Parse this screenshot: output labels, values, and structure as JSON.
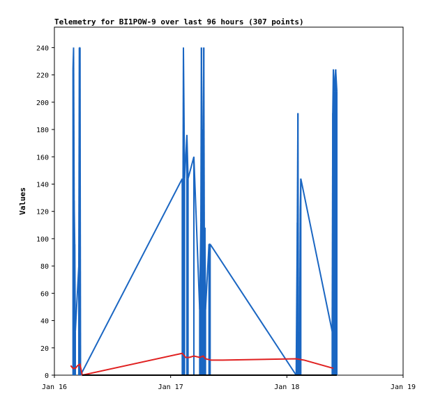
{
  "chart_data": {
    "type": "line",
    "title": "Telemetry for BI1POW-9 over last 96 hours (307 points)",
    "ylabel": "Values",
    "xlabel": "",
    "x_ticks": [
      "Jan 16",
      "Jan 17",
      "Jan 18",
      "Jan 19"
    ],
    "y_ticks": [
      0,
      20,
      40,
      60,
      80,
      100,
      120,
      140,
      160,
      180,
      200,
      220,
      240
    ],
    "ylim": [
      0,
      255
    ],
    "xlim_days": [
      16.0,
      19.0
    ],
    "grid": false,
    "series": [
      {
        "name": "",
        "color": "#1a66c2",
        "style": "spikes",
        "points": [
          [
            16.16,
            224
          ],
          [
            16.165,
            240
          ],
          [
            16.17,
            128
          ],
          [
            16.175,
            96
          ],
          [
            16.18,
            32
          ],
          [
            16.21,
            80
          ],
          [
            16.215,
            240
          ],
          [
            16.22,
            240
          ],
          [
            16.225,
            0
          ],
          [
            17.1,
            144
          ],
          [
            17.105,
            96
          ],
          [
            17.11,
            240
          ],
          [
            17.12,
            144
          ],
          [
            17.14,
            176
          ],
          [
            17.15,
            144
          ],
          [
            17.2,
            160
          ],
          [
            17.25,
            48
          ],
          [
            17.26,
            112
          ],
          [
            17.265,
            240
          ],
          [
            17.27,
            176
          ],
          [
            17.275,
            180
          ],
          [
            17.28,
            144
          ],
          [
            17.285,
            240
          ],
          [
            17.29,
            96
          ],
          [
            17.295,
            108
          ],
          [
            17.3,
            48
          ],
          [
            17.33,
            96
          ],
          [
            17.34,
            96
          ],
          [
            18.08,
            0
          ],
          [
            18.09,
            112
          ],
          [
            18.095,
            192
          ],
          [
            18.1,
            16
          ],
          [
            18.11,
            32
          ],
          [
            18.115,
            120
          ],
          [
            18.12,
            144
          ],
          [
            18.39,
            32
          ],
          [
            18.395,
            192
          ],
          [
            18.4,
            224
          ],
          [
            18.41,
            208
          ],
          [
            18.42,
            224
          ],
          [
            18.43,
            208
          ]
        ]
      },
      {
        "name": "",
        "color": "#e02020",
        "style": "line",
        "points": [
          [
            16.14,
            7
          ],
          [
            16.16,
            5
          ],
          [
            16.18,
            5
          ],
          [
            16.2,
            7
          ],
          [
            16.22,
            8
          ],
          [
            16.24,
            0
          ],
          [
            17.1,
            16
          ],
          [
            17.13,
            13
          ],
          [
            17.16,
            13
          ],
          [
            17.2,
            14
          ],
          [
            17.25,
            13
          ],
          [
            17.28,
            14
          ],
          [
            17.3,
            12
          ],
          [
            17.35,
            11
          ],
          [
            17.45,
            11
          ],
          [
            18.08,
            12
          ],
          [
            18.15,
            11
          ],
          [
            18.4,
            5
          ]
        ]
      },
      {
        "name": "",
        "color": "#000000",
        "style": "line",
        "points": [
          [
            16.24,
            0
          ],
          [
            18.43,
            0
          ]
        ]
      }
    ]
  }
}
